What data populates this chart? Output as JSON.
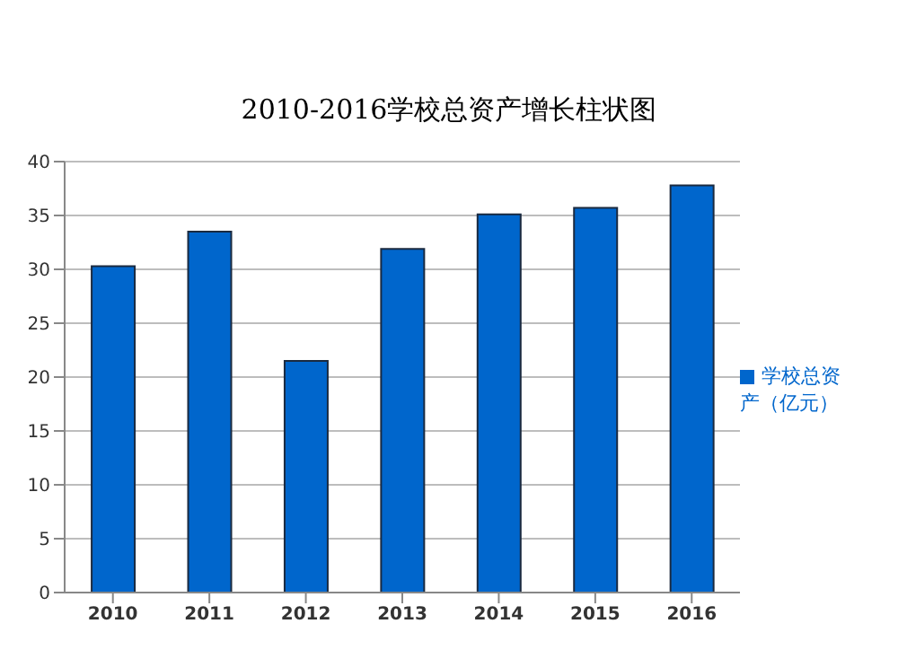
{
  "chart_data": {
    "type": "bar",
    "title": "2010-2016学校总资产增长柱状图",
    "categories": [
      "2010",
      "2011",
      "2012",
      "2013",
      "2014",
      "2015",
      "2016"
    ],
    "series": [
      {
        "name": "学校总资产（亿元）",
        "color": "#0066cc",
        "values": [
          30.3,
          33.5,
          21.5,
          31.9,
          35.1,
          35.7,
          37.8
        ]
      }
    ],
    "ylim": [
      0,
      40
    ],
    "yticks": [
      0,
      5,
      10,
      15,
      20,
      25,
      30,
      35,
      40
    ],
    "grid": "y",
    "legend": "right"
  }
}
